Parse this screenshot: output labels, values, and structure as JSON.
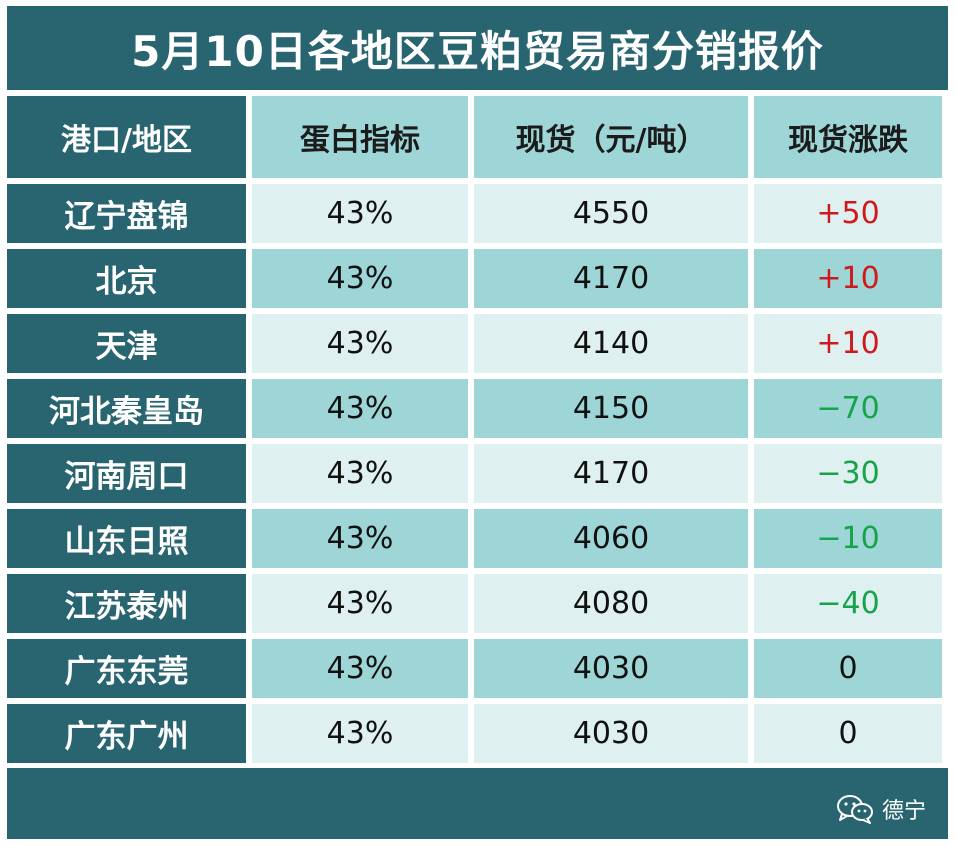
{
  "title": "5月10日各地区豆粕贸易商分销报价",
  "headers": [
    "港口/地区",
    "蛋白指标",
    "现货（元/吨）",
    "现货涨跌"
  ],
  "rows": [
    {
      "region": "辽宁盘锦",
      "protein": "43%",
      "price": "4550",
      "change": "+50",
      "trend": "up"
    },
    {
      "region": "北京",
      "protein": "43%",
      "price": "4170",
      "change": "+10",
      "trend": "up"
    },
    {
      "region": "天津",
      "protein": "43%",
      "price": "4140",
      "change": "+10",
      "trend": "up"
    },
    {
      "region": "河北秦皇岛",
      "protein": "43%",
      "price": "4150",
      "change": "−70",
      "trend": "down"
    },
    {
      "region": "河南周口",
      "protein": "43%",
      "price": "4170",
      "change": "−30",
      "trend": "down"
    },
    {
      "region": "山东日照",
      "protein": "43%",
      "price": "4060",
      "change": "−10",
      "trend": "down"
    },
    {
      "region": "江苏泰州",
      "protein": "43%",
      "price": "4080",
      "change": "−40",
      "trend": "down"
    },
    {
      "region": "广东东莞",
      "protein": "43%",
      "price": "4030",
      "change": "0",
      "trend": "flat"
    },
    {
      "region": "广东广州",
      "protein": "43%",
      "price": "4030",
      "change": "0",
      "trend": "flat"
    }
  ],
  "footer": {
    "brand": "德宁",
    "icon": "wechat-icon"
  },
  "colors": {
    "dark_teal": "#286570",
    "mid_teal": "#9ed6d8",
    "light_teal": "#dff0f0",
    "up": "#d0191c",
    "down": "#16a34a"
  }
}
